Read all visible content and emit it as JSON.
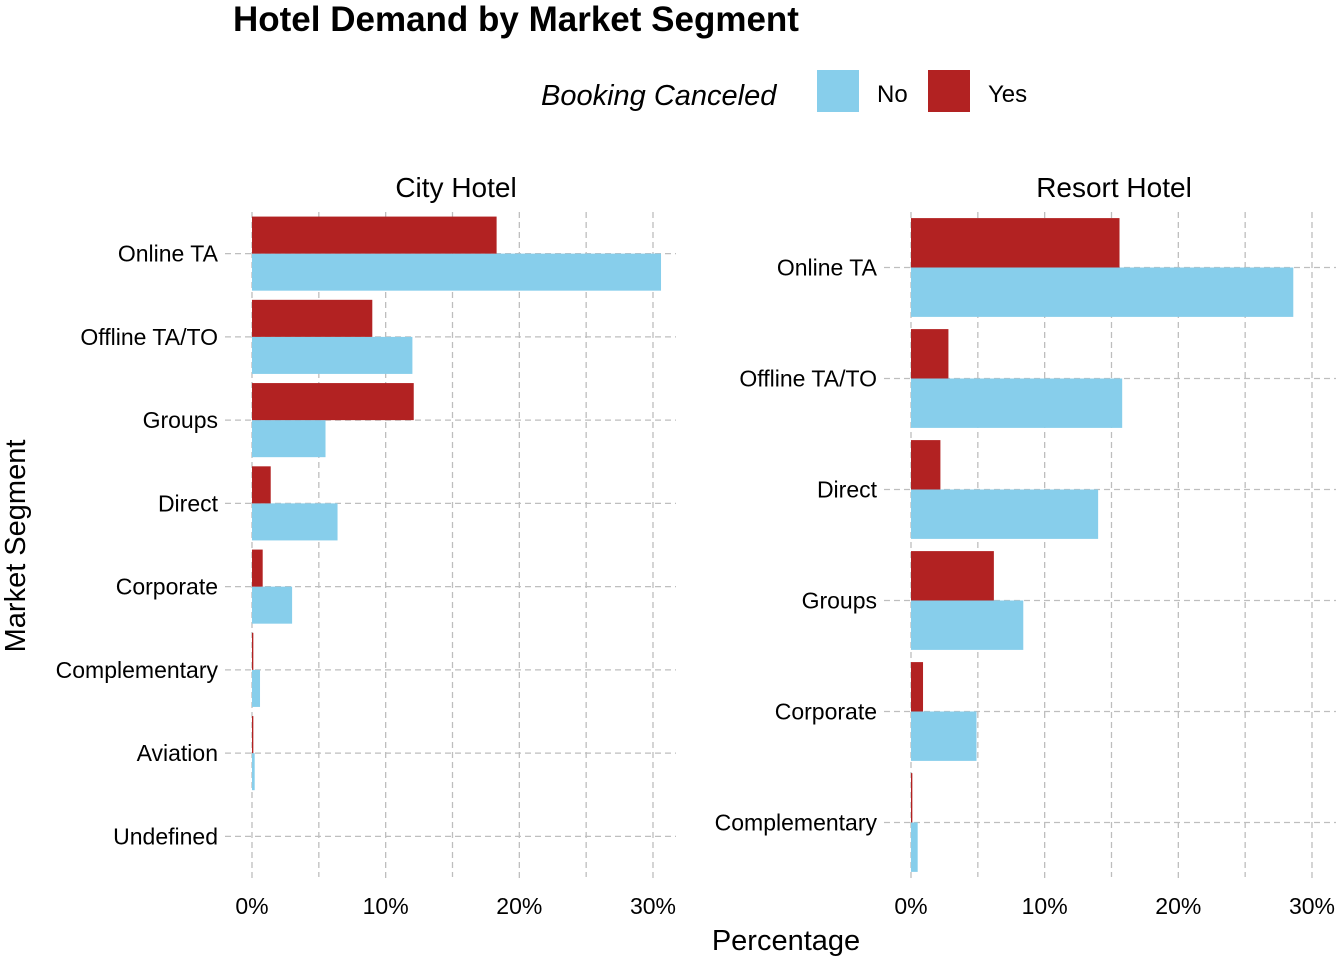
{
  "chart_data": {
    "type": "bar",
    "orientation": "horizontal",
    "title": "Hotel Demand by Market Segment",
    "xlabel": "Percentage",
    "ylabel": "Market Segment",
    "xlim": [
      0,
      31.5
    ],
    "x_ticks": [
      0,
      10,
      20,
      30
    ],
    "x_tick_labels": [
      "0%",
      "10%",
      "20%",
      "30%"
    ],
    "grid": true,
    "legend": {
      "title": "Booking Canceled",
      "position": "top",
      "entries": [
        {
          "name": "No",
          "color": "#87CEEB"
        },
        {
          "name": "Yes",
          "color": "#B22222"
        }
      ]
    },
    "facets": [
      {
        "title": "City Hotel",
        "categories": [
          "Online TA",
          "Offline TA/TO",
          "Groups",
          "Direct",
          "Corporate",
          "Complementary",
          "Aviation",
          "Undefined"
        ],
        "series": [
          {
            "name": "No",
            "color": "#87CEEB",
            "values": [
              30.6,
              12.0,
              5.5,
              6.4,
              3.0,
              0.6,
              0.2,
              0.0
            ]
          },
          {
            "name": "Yes",
            "color": "#B22222",
            "values": [
              18.3,
              9.0,
              12.1,
              1.4,
              0.8,
              0.1,
              0.1,
              0.0
            ]
          }
        ]
      },
      {
        "title": "Resort Hotel",
        "categories": [
          "Online TA",
          "Offline TA/TO",
          "Direct",
          "Groups",
          "Corporate",
          "Complementary"
        ],
        "series": [
          {
            "name": "No",
            "color": "#87CEEB",
            "values": [
              28.6,
              15.8,
              14.0,
              8.4,
              4.9,
              0.5
            ]
          },
          {
            "name": "Yes",
            "color": "#B22222",
            "values": [
              15.6,
              2.8,
              2.2,
              6.2,
              0.9,
              0.1
            ]
          }
        ]
      }
    ]
  }
}
